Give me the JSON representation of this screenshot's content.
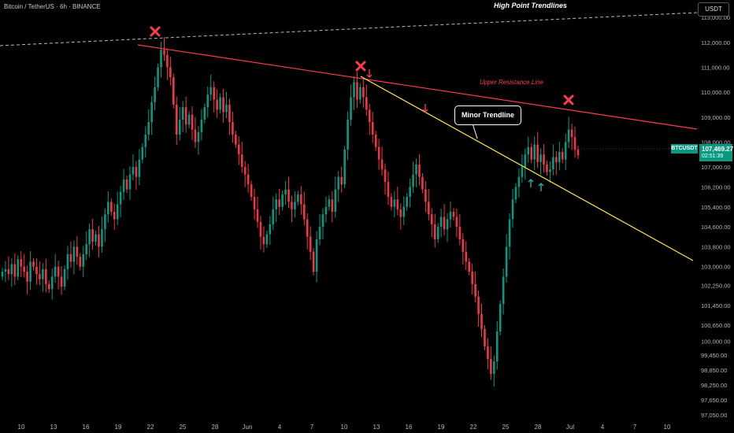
{
  "header": {
    "symbol_line": "Bitcoin / TetherUS · 6h · BINANCE"
  },
  "title": "High Point Trendlines",
  "currency_button": "USDT",
  "price_tag": {
    "symbol": "BTCUSDT",
    "price": "107,469.27",
    "countdown": "02:51:39"
  },
  "annotations": {
    "minor_trendline_label": "Minor Trendline",
    "resistance_label": "Upper Resistance Line"
  },
  "colors": {
    "up": "#089981",
    "down": "#f23645",
    "resistance": "#ff3b4f",
    "minor": "#ffeb3b",
    "marker_x": "#ff3b4f",
    "arrow_down": "#ff3b4f",
    "arrow_up": "#26a69a"
  },
  "chart_data": {
    "type": "candlestick",
    "title": "High Point Trendlines",
    "y_axis": {
      "ticks": [
        113000,
        112000,
        111000,
        110000,
        109000,
        108000,
        107000,
        106200,
        105400,
        104600,
        103800,
        103000,
        102250,
        101450,
        100650,
        100000,
        99450,
        98850,
        98250,
        97650,
        97050
      ],
      "tick_labels": [
        "113,000.00",
        "112,000.00",
        "111,000.00",
        "110,000.00",
        "109,000.00",
        "108,000.00",
        "107,000.00",
        "106,200.00",
        "105,400.00",
        "104,600.00",
        "103,800.00",
        "103,000.00",
        "102,250.00",
        "101,450.00",
        "100,650.00",
        "100,000.00",
        "99,450.00",
        "98,850.00",
        "98,250.00",
        "97,650.00",
        "97,050.00"
      ],
      "ylim": [
        96800,
        113700
      ]
    },
    "x_axis": {
      "ticks": [
        "10",
        "13",
        "16",
        "19",
        "22",
        "25",
        "28",
        "Jun",
        "4",
        "7",
        "10",
        "13",
        "16",
        "19",
        "22",
        "25",
        "28",
        "Jul",
        "4",
        "7",
        "10"
      ],
      "xlim": [
        "May 9",
        "Jul 11"
      ]
    },
    "close": [
      102800,
      102900,
      102700,
      103100,
      102600,
      103300,
      103000,
      102800,
      102400,
      103200,
      103000,
      102700,
      102500,
      102900,
      102300,
      102100,
      102600,
      103000,
      102600,
      102200,
      102900,
      103500,
      103200,
      103800,
      103400,
      103000,
      103500,
      103900,
      104500,
      104000,
      104300,
      103800,
      104500,
      105100,
      105600,
      105200,
      104900,
      105500,
      106000,
      106500,
      106100,
      106700,
      107000,
      106600,
      107300,
      107800,
      108300,
      108800,
      109600,
      110200,
      111000,
      111700,
      111500,
      111000,
      110600,
      109500,
      108300,
      108900,
      109400,
      108700,
      109100,
      108500,
      108000,
      108400,
      108900,
      109400,
      109900,
      110200,
      109700,
      109300,
      109800,
      109200,
      109500,
      108800,
      108300,
      107900,
      107500,
      107000,
      106700,
      106300,
      105800,
      105300,
      104800,
      104200,
      103900,
      104300,
      104700,
      105300,
      105700,
      105400,
      105900,
      106100,
      105600,
      105300,
      105600,
      105900,
      105500,
      104900,
      104200,
      103600,
      102800,
      104100,
      104600,
      105100,
      105400,
      105700,
      105200,
      106100,
      106600,
      106300,
      107700,
      108900,
      109800,
      110400,
      109700,
      110200,
      109800,
      109300,
      108800,
      108300,
      107800,
      107300,
      106900,
      106400,
      105800,
      105400,
      105700,
      105300,
      105000,
      105400,
      105800,
      106200,
      106700,
      107100,
      106600,
      106100,
      105600,
      105100,
      104700,
      104100,
      104600,
      105000,
      104500,
      104900,
      105200,
      105000,
      104600,
      104100,
      103600,
      103200,
      102800,
      102300,
      101800,
      101100,
      100500,
      99800,
      99300,
      98700,
      99200,
      100400,
      101500,
      102600,
      103800,
      104900,
      105700,
      106200,
      106600,
      107000,
      107500,
      107800,
      107300,
      107900,
      107200,
      107500,
      107100,
      106800,
      106900,
      107400,
      107200,
      107600,
      107300,
      108000,
      108500,
      108200,
      107700,
      107469
    ]
  }
}
